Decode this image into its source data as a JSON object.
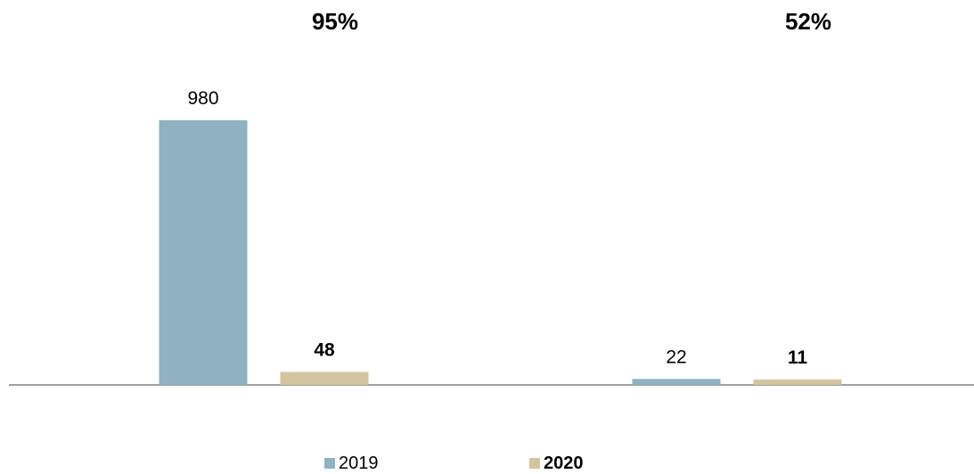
{
  "chart_data": {
    "type": "bar",
    "categories": [
      "",
      ""
    ],
    "series": [
      {
        "name": "2019",
        "values": [
          980,
          22
        ],
        "color": "#8fb1c1",
        "label_bold": false
      },
      {
        "name": "2020",
        "values": [
          48,
          11
        ],
        "color": "#d4c4a0",
        "label_bold": true
      }
    ],
    "group_annotations": [
      "95%",
      "52%"
    ],
    "title": "",
    "xlabel": "",
    "ylabel": "",
    "ylim": [
      0,
      1000
    ],
    "grid": false,
    "legend_position": "bottom"
  }
}
